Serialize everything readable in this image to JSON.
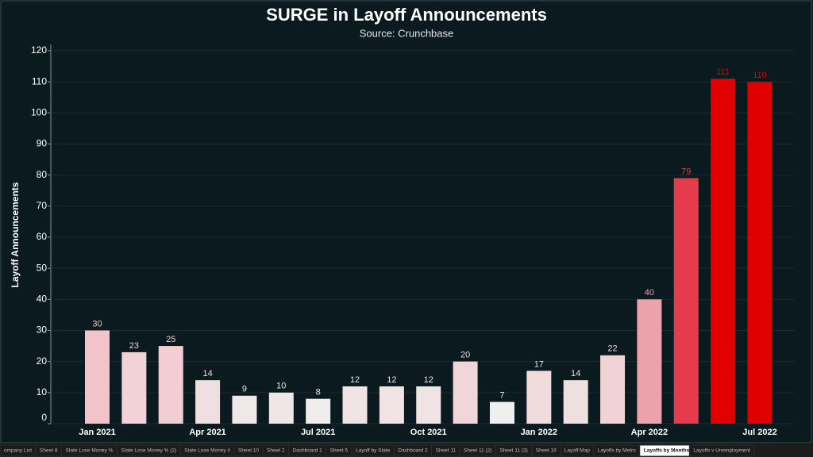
{
  "chart_data": {
    "type": "bar",
    "title": "SURGE in Layoff Announcements",
    "subtitle": "Source: Crunchbase",
    "y_label": "Layoff Announcements",
    "categories": [
      "Jan 2021",
      null,
      null,
      "Apr 2021",
      null,
      null,
      "Jul 2021",
      null,
      null,
      "Oct 2021",
      null,
      null,
      "Jan 2022",
      null,
      null,
      "Apr 2022",
      null,
      null,
      "Jul 2022"
    ],
    "values": [
      30,
      23,
      25,
      14,
      9,
      10,
      8,
      12,
      12,
      12,
      20,
      7,
      17,
      14,
      22,
      40,
      79,
      111,
      110
    ],
    "colors": [
      "#f2c3c8",
      "#f2d2d6",
      "#f2cdd1",
      "#efdfe1",
      "#efe8e9",
      "#efe6e7",
      "#efecec",
      "#efe3e4",
      "#efe3e4",
      "#efe3e4",
      "#f1d6d9",
      "#efefef",
      "#f0dbdd",
      "#efdfe1",
      "#f1d2d5",
      "#eba2aa",
      "#e63a4d",
      "#e00000",
      "#e00000"
    ],
    "ylim": [
      0,
      121
    ],
    "yticks": [
      0,
      10,
      20,
      30,
      40,
      50,
      60,
      70,
      80,
      90,
      100,
      110,
      120
    ],
    "grid": true
  },
  "tabs": [
    "ompany List",
    "Sheet 8",
    "State Lose Money %",
    "State Lose Money % (2)",
    "State Lose Money #",
    "Sheet 10",
    "Sheet 2",
    "Dashboard 1",
    "Sheet 5",
    "Layoff by State",
    "Dashboard 2",
    "Sheet 11",
    "Sheet 11 (2)",
    "Sheet 11 (3)",
    "Sheet 19",
    "Layoff Map",
    "Layoffs by Metro",
    "Layoffs by Months",
    "Layoffs v Unemployment"
  ],
  "active_tab": 17
}
